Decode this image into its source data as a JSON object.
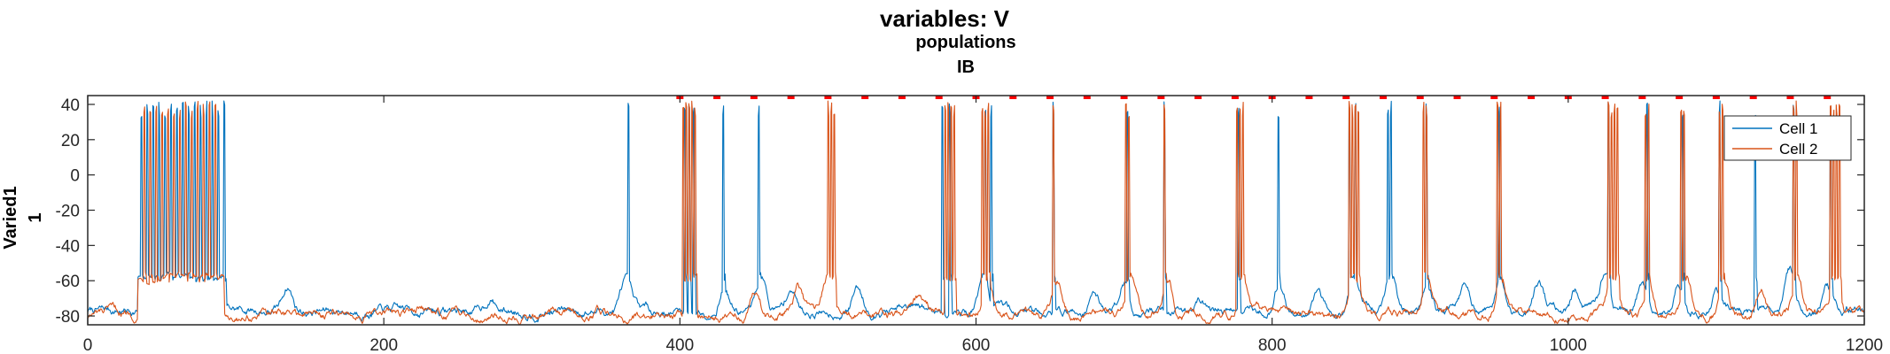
{
  "chart_data": {
    "type": "line",
    "title": "variables: V",
    "subtitle": "populations",
    "subtitle2": "IB",
    "ylabel_line1": "Varied1",
    "ylabel_line2": "1",
    "xlabel": "",
    "xlim": [
      0,
      1200
    ],
    "ylim": [
      -85,
      45
    ],
    "x_ticks": [
      0,
      200,
      400,
      600,
      800,
      1000,
      1200
    ],
    "y_ticks": [
      -80,
      -60,
      -40,
      -20,
      0,
      20,
      40
    ],
    "grid": false,
    "legend_position": "top-right",
    "marker_y": 44,
    "marker_color": "#ff0000",
    "marker_times": [
      400,
      425,
      450,
      475,
      500,
      525,
      550,
      575,
      600,
      625,
      650,
      675,
      700,
      725,
      750,
      775,
      800,
      825,
      850,
      875,
      900,
      925,
      950,
      975,
      1000,
      1025,
      1050,
      1075,
      1100,
      1125,
      1150,
      1175
    ],
    "series": [
      {
        "name": "Cell 1",
        "color": "#0072bd",
        "baseline": -77,
        "spike_times": [
          36,
          40,
          44,
          48,
          52,
          56,
          60,
          64,
          68,
          72,
          76,
          80,
          84,
          88,
          92,
          365,
          403,
          406,
          409,
          429,
          453,
          577,
          582,
          606,
          610,
          652,
          702,
          727,
          777,
          804,
          852,
          856,
          878,
          880,
          904,
          953,
          1027,
          1053,
          1077,
          1102,
          1126,
          1152,
          1177
        ],
        "bumps": [
          [
            135,
            -63
          ],
          [
            272,
            -70
          ],
          [
            363,
            -60
          ],
          [
            430,
            -62
          ],
          [
            455,
            -58
          ],
          [
            475,
            -64
          ],
          [
            520,
            -64
          ],
          [
            605,
            -55
          ],
          [
            680,
            -66
          ],
          [
            700,
            -60
          ],
          [
            750,
            -68
          ],
          [
            805,
            -60
          ],
          [
            830,
            -66
          ],
          [
            855,
            -60
          ],
          [
            880,
            -55
          ],
          [
            905,
            -60
          ],
          [
            930,
            -63
          ],
          [
            955,
            -60
          ],
          [
            980,
            -60
          ],
          [
            1005,
            -66
          ],
          [
            1025,
            -55
          ],
          [
            1050,
            -62
          ],
          [
            1075,
            -60
          ],
          [
            1100,
            -66
          ],
          [
            1150,
            -55
          ],
          [
            1175,
            -63
          ],
          [
            1192,
            -75
          ]
        ]
      },
      {
        "name": "Cell 2",
        "color": "#d95319",
        "baseline": -79,
        "spike_times": [
          38,
          42,
          46,
          50,
          54,
          58,
          62,
          66,
          70,
          74,
          78,
          82,
          86,
          402,
          404,
          406,
          408,
          410,
          500,
          502,
          504,
          579,
          581,
          583,
          585,
          604,
          606,
          608,
          652,
          701,
          703,
          727,
          776,
          778,
          780,
          852,
          854,
          856,
          858,
          902,
          904,
          952,
          954,
          1027,
          1029,
          1031,
          1033,
          1052,
          1054,
          1076,
          1078,
          1102,
          1104,
          1152,
          1154,
          1177,
          1179,
          1181,
          1183
        ],
        "bumps": [
          [
            225,
            -74
          ],
          [
            345,
            -76
          ],
          [
            450,
            -66
          ],
          [
            480,
            -64
          ],
          [
            500,
            -58
          ],
          [
            560,
            -72
          ],
          [
            608,
            -58
          ],
          [
            655,
            -60
          ],
          [
            705,
            -58
          ],
          [
            730,
            -60
          ],
          [
            780,
            -58
          ],
          [
            856,
            -58
          ],
          [
            905,
            -60
          ],
          [
            955,
            -58
          ],
          [
            1030,
            -55
          ],
          [
            1055,
            -60
          ],
          [
            1080,
            -58
          ],
          [
            1105,
            -60
          ],
          [
            1130,
            -64
          ],
          [
            1155,
            -58
          ],
          [
            1180,
            -60
          ]
        ]
      }
    ]
  }
}
